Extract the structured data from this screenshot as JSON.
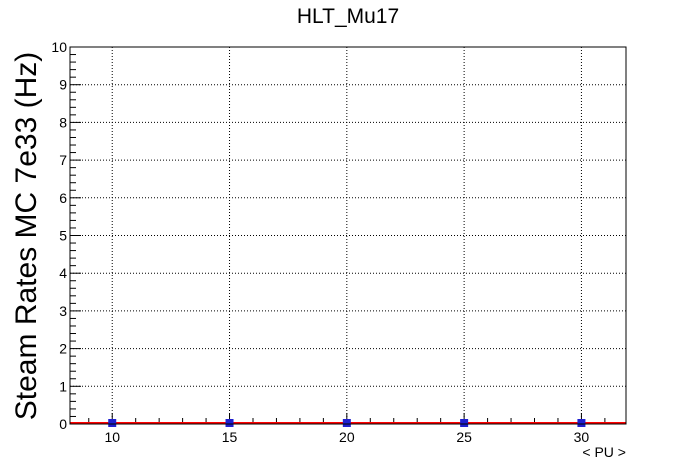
{
  "chart_data": {
    "type": "scatter",
    "title": "HLT_Mu17",
    "xlabel": "< PU >",
    "ylabel": "Steam Rates MC 7e33 (Hz)",
    "xlim": [
      8.2,
      31.9
    ],
    "ylim": [
      0,
      10
    ],
    "x_ticks": [
      10,
      15,
      20,
      25,
      30
    ],
    "y_ticks": [
      0,
      1,
      2,
      3,
      4,
      5,
      6,
      7,
      8,
      9,
      10
    ],
    "grid": true,
    "series": [
      {
        "color": "#1f1fcf",
        "marker": "square",
        "x": [
          10,
          15,
          20,
          25,
          30
        ],
        "y": [
          0,
          0,
          0,
          0,
          0
        ]
      }
    ],
    "fit_line": {
      "color": "#ff0000",
      "y": 0
    }
  }
}
